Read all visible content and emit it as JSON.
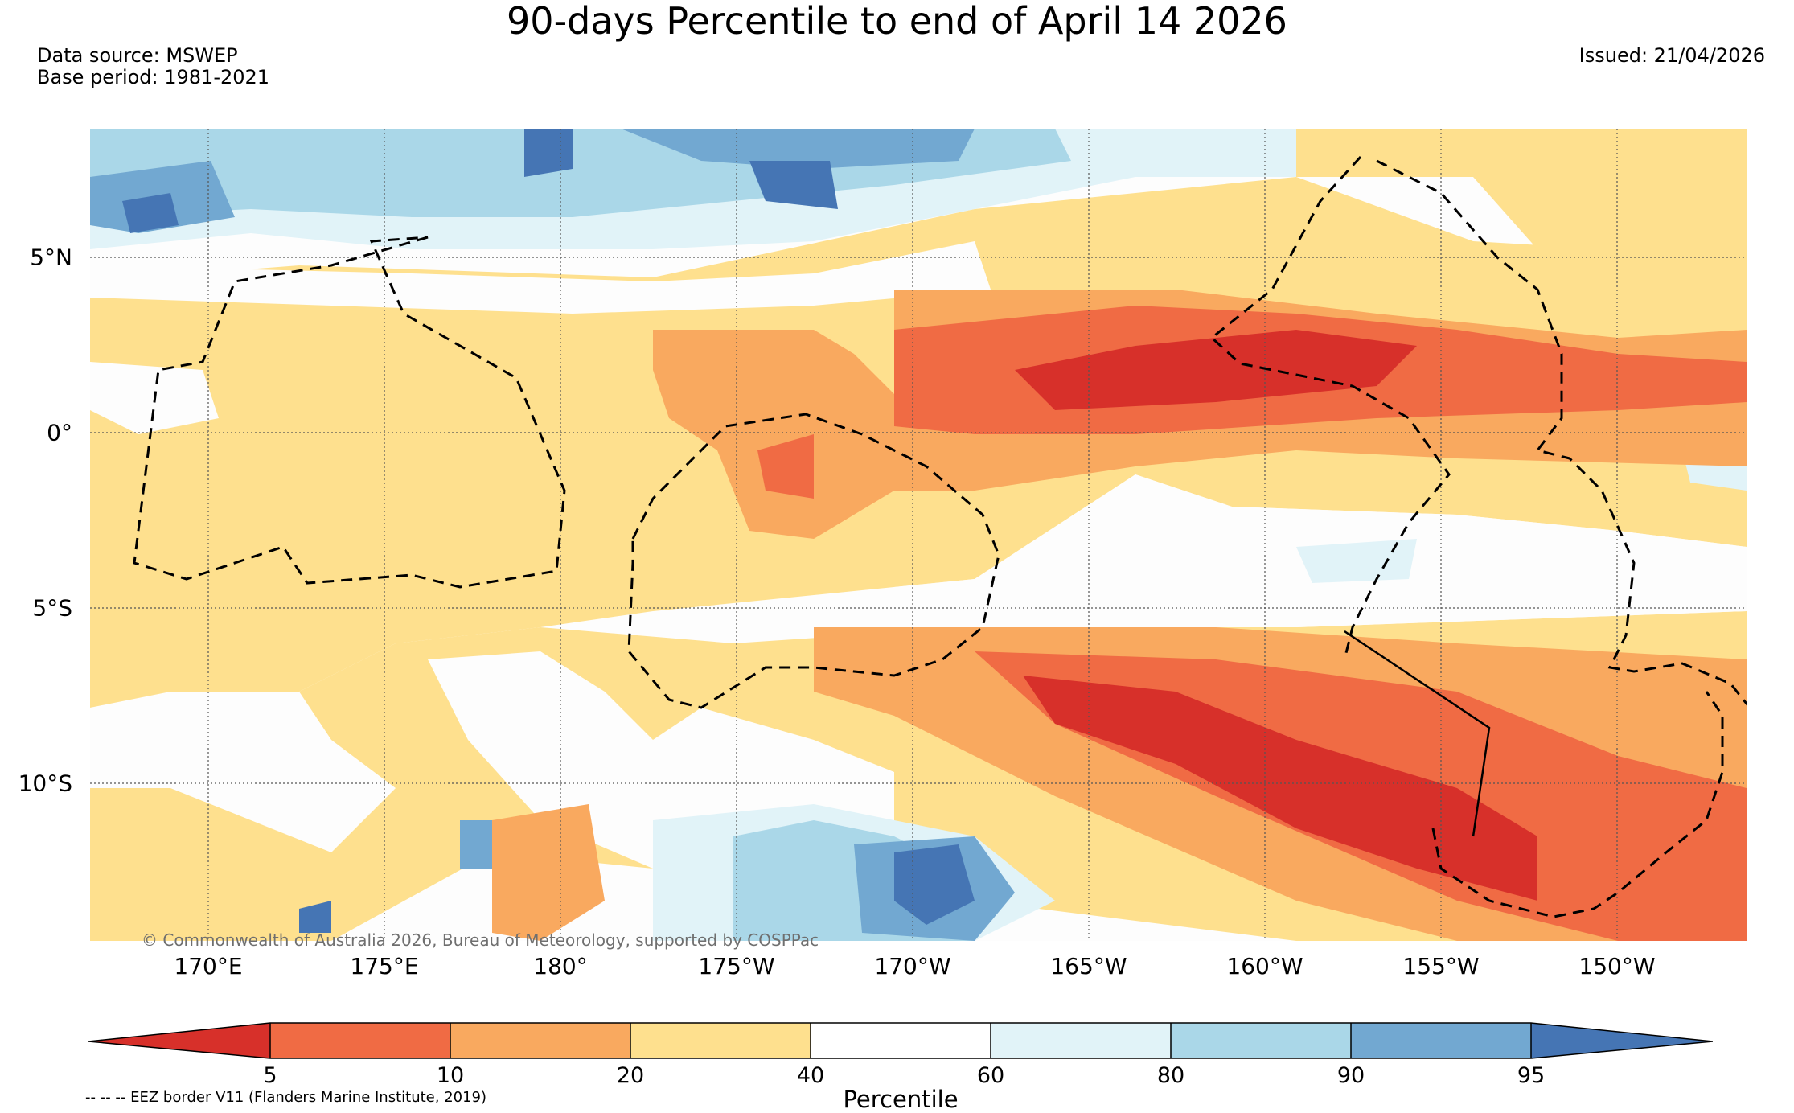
{
  "title": "90-days Percentile to end of April 14 2026",
  "data_source": "Data source: MSWEP",
  "base_period": "Base period: 1981-2021",
  "issued": "Issued: 21/04/2026",
  "copyright": "© Commonwealth of Australia 2026, Bureau of Meteorology, supported by COSPPac",
  "eez_legend": "-- -- -- EEZ border V11 (Flanders Marine Institute, 2019)",
  "map": {
    "lat_labels": [
      "5°N",
      "0°",
      "5°S",
      "10°S"
    ],
    "lon_labels": [
      "170°E",
      "175°E",
      "180°",
      "175°W",
      "170°W",
      "165°W",
      "160°W",
      "155°W",
      "150°W"
    ]
  },
  "colorbar": {
    "label": "Percentile",
    "ticks": [
      "5",
      "10",
      "20",
      "40",
      "60",
      "80",
      "90",
      "95"
    ],
    "colors": [
      "#d7302a",
      "#f06b44",
      "#f9a95f",
      "#fee08e",
      "#ffffff",
      "#e1f3f8",
      "#aad7e8",
      "#72a8d1",
      "#4575b4"
    ]
  },
  "percentile_colors": {
    "p0_5": "#d7302a",
    "p5_10": "#f06b44",
    "p10_20": "#f9a95f",
    "p20_40": "#fee08e",
    "p40_60": "#ffffff",
    "p60_80": "#e1f3f8",
    "p80_90": "#aad7e8",
    "p90_95": "#72a8d1",
    "p95_100": "#4575b4"
  }
}
